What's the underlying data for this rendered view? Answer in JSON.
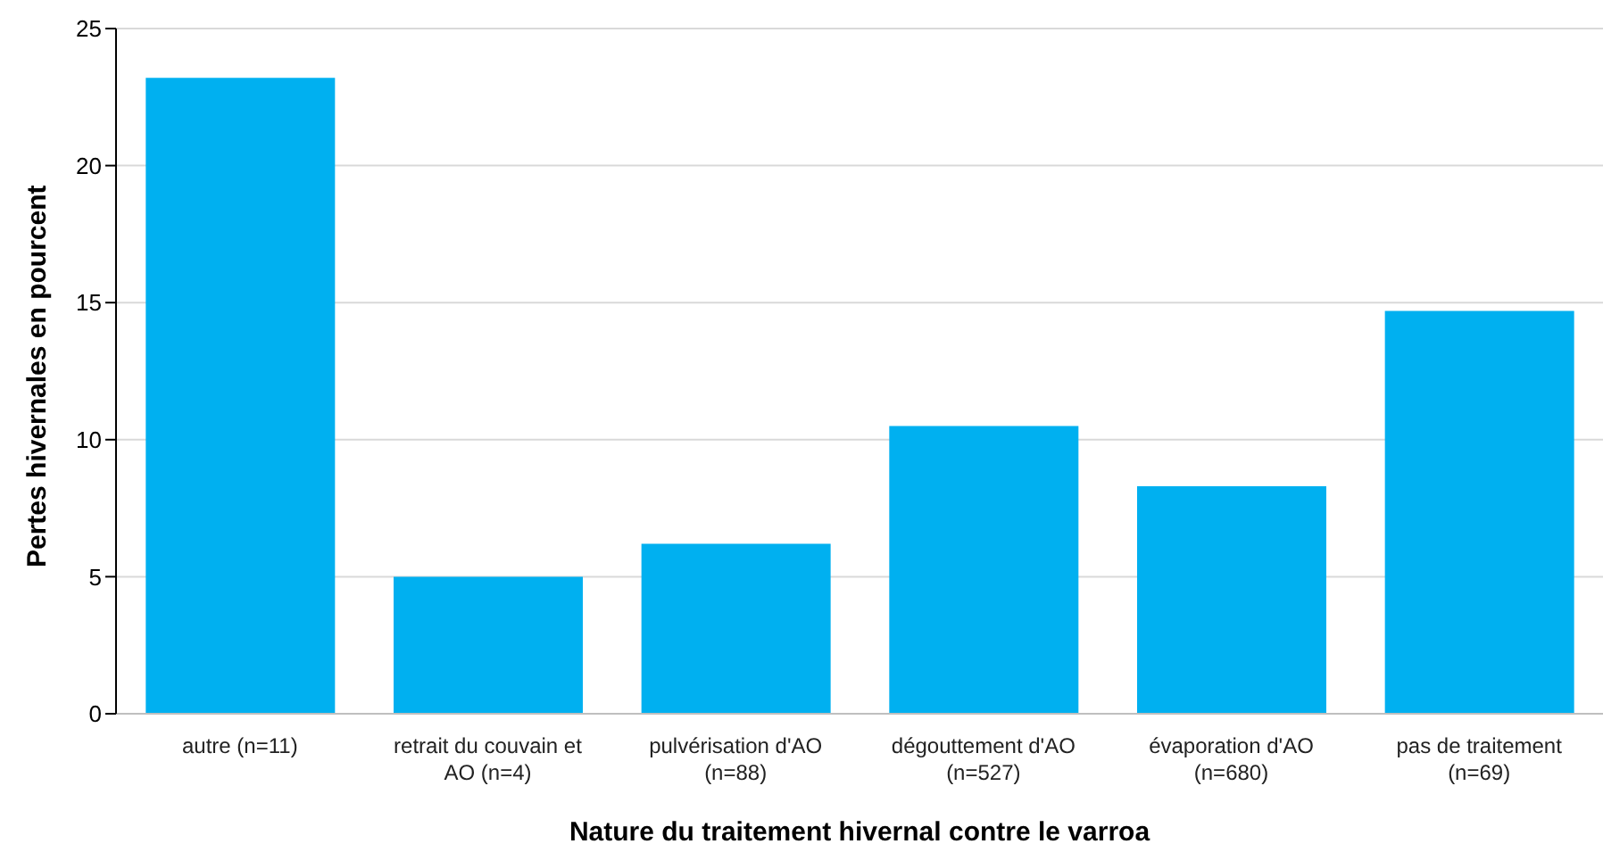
{
  "chart_data": {
    "type": "bar",
    "xlabel": "Nature du traitement hivernal contre le varroa",
    "ylabel": "Pertes hivernales en pourcent",
    "categories": [
      "autre (n=11)",
      "retrait du couvain et AO (n=4)",
      "pulvérisation d'AO (n=88)",
      "dégouttement d'AO (n=527)",
      "évaporation d'AO (n=680)",
      "pas de traitement (n=69)"
    ],
    "values": [
      23.2,
      5.0,
      6.2,
      10.5,
      8.3,
      14.7
    ],
    "color": "#00b0f0",
    "ylim": [
      0,
      25
    ],
    "yticks": [
      0,
      5,
      10,
      15,
      20,
      25
    ],
    "grid": "y"
  }
}
